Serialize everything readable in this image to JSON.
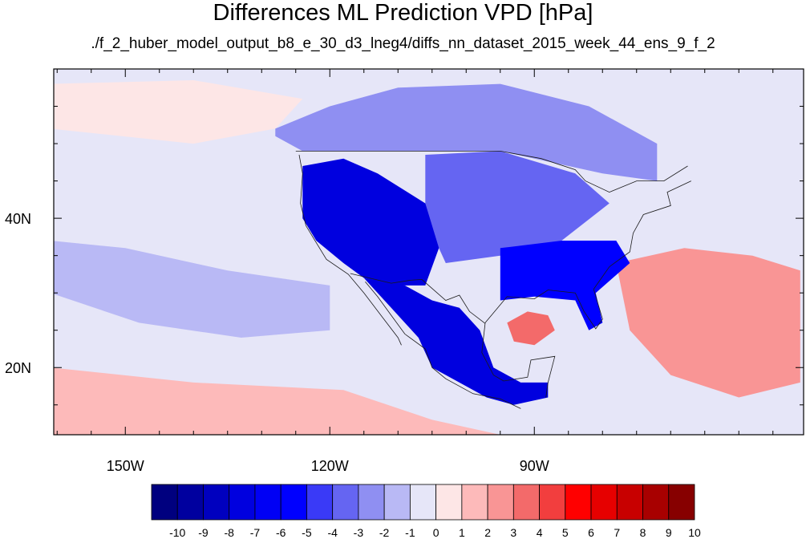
{
  "chart_data": {
    "type": "heatmap",
    "title": "Differences ML Prediction VPD [hPa]",
    "subtitle": "./f_2_huber_model_output_b8_e_30_d3_lneg4/diffs_nn_dataset_2015_week_44_ens_9_f_2",
    "x_axis": {
      "range_lon": [
        -160.5,
        -50.5
      ],
      "tick_labels": [
        {
          "label": "150W",
          "lon": -150
        },
        {
          "label": "120W",
          "lon": -120
        },
        {
          "label": "90W",
          "lon": -90
        }
      ],
      "minor_ticks_lon": [
        -160,
        -155,
        -145,
        -140,
        -135,
        -130,
        -125,
        -115,
        -110,
        -105,
        -100,
        -95,
        -85,
        -80,
        -75,
        -70,
        -65,
        -60,
        -55
      ]
    },
    "y_axis": {
      "range_lat": [
        11,
        60
      ],
      "tick_labels": [
        {
          "label": "40N",
          "lat": 40
        },
        {
          "label": "20N",
          "lat": 20
        }
      ],
      "minor_ticks_lat": [
        15,
        25,
        30,
        35,
        45,
        50,
        55
      ]
    },
    "colorbar": {
      "labels": [
        "-10",
        "-9",
        "-8",
        "-7",
        "-6",
        "-5",
        "-4",
        "-3",
        "-2",
        "-1",
        "0",
        "1",
        "2",
        "3",
        "4",
        "5",
        "6",
        "7",
        "8",
        "9",
        "10"
      ],
      "colors": [
        "#00007f",
        "#00009f",
        "#0000bf",
        "#0000df",
        "#0000f5",
        "#0000ff",
        "#3a3af7",
        "#6565f2",
        "#8f8ff2",
        "#b9b9f5",
        "#e6e6f8",
        "#fde6e6",
        "#fdbaba",
        "#f99595",
        "#f36a6a",
        "#f23e3e",
        "#ff0000",
        "#e60000",
        "#c80000",
        "#a80000",
        "#870000"
      ]
    },
    "field_regions": [
      {
        "region": "ocean background",
        "value": -0.5
      },
      {
        "region": "north Pacific band",
        "value": 0.5
      },
      {
        "region": "central Pacific band",
        "value": -1.5
      },
      {
        "region": "Canada",
        "value": -2.5
      },
      {
        "region": "western US interior",
        "value": -7.5
      },
      {
        "region": "US Great Plains",
        "value": -3.5
      },
      {
        "region": "southeastern US",
        "value": -5.5
      },
      {
        "region": "Mexico",
        "value": -7.5
      },
      {
        "region": "Gulf of Mexico anomaly",
        "value": 3.5
      },
      {
        "region": "subtropical Atlantic",
        "value": 2.5
      },
      {
        "region": "tropical eastern Pacific",
        "value": 1.5
      }
    ]
  }
}
